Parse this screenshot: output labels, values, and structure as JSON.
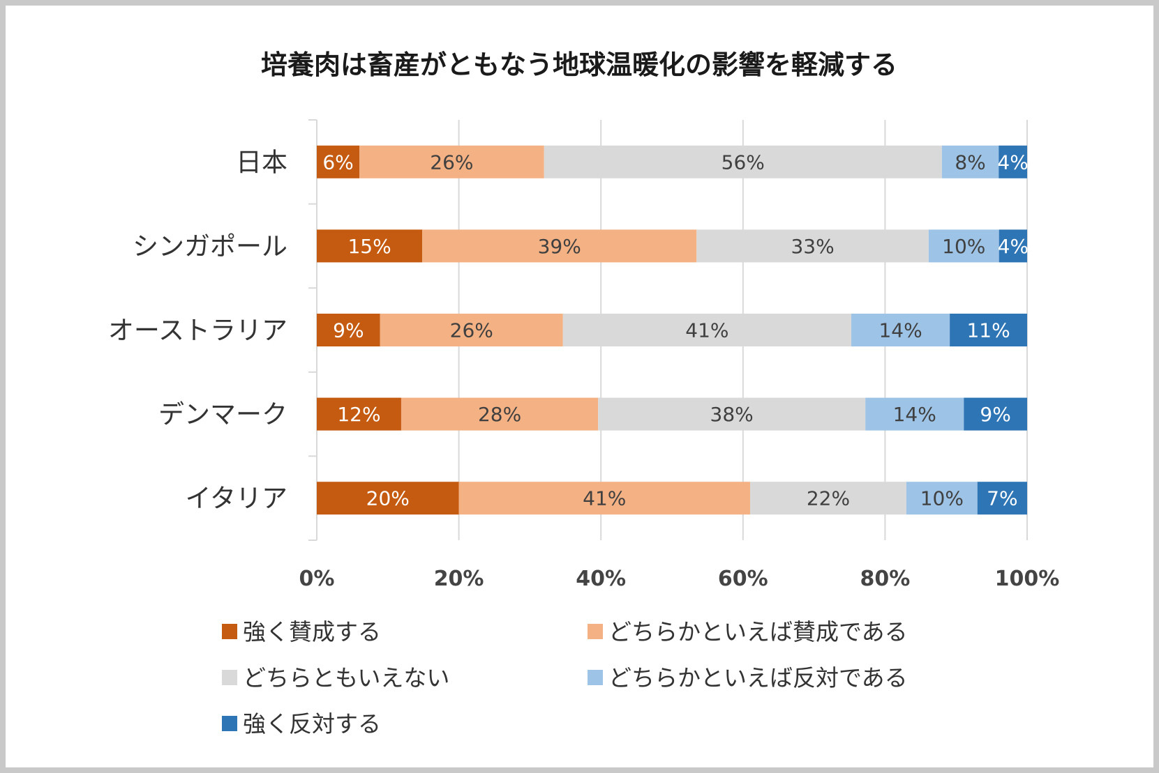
{
  "chart_data": {
    "type": "bar",
    "orientation": "horizontal-stacked-100",
    "title": "培養肉は畜産がともなう地球温暖化の影響を軽減する",
    "categories": [
      "日本",
      "シンガポール",
      "オーストラリア",
      "デンマーク",
      "イタリア"
    ],
    "series": [
      {
        "name": "強く賛成する",
        "color": "#c55a11",
        "label_color": "#ffffff",
        "values": [
          6,
          15,
          9,
          12,
          20
        ]
      },
      {
        "name": "どちらかといえば賛成である",
        "color": "#f4b183",
        "label_color": "#404040",
        "values": [
          26,
          39,
          26,
          28,
          41
        ]
      },
      {
        "name": "どちらともいえない",
        "color": "#d9d9d9",
        "label_color": "#404040",
        "values": [
          56,
          33,
          41,
          38,
          22
        ]
      },
      {
        "name": "どちらかといえば反対である",
        "color": "#9dc3e6",
        "label_color": "#404040",
        "values": [
          8,
          10,
          14,
          14,
          10
        ]
      },
      {
        "name": "強く反対する",
        "color": "#2e75b6",
        "label_color": "#ffffff",
        "values": [
          4,
          4,
          11,
          9,
          7
        ]
      }
    ],
    "x_ticks": [
      "0%",
      "20%",
      "40%",
      "60%",
      "80%",
      "100%"
    ],
    "xlim": [
      0,
      100
    ],
    "grid": true,
    "legend_position": "bottom"
  }
}
